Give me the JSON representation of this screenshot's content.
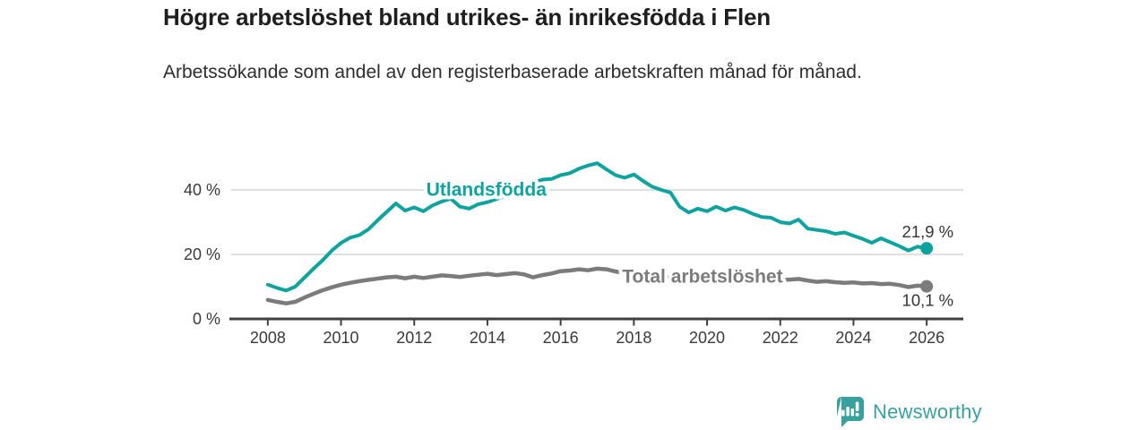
{
  "chart_data": {
    "type": "line",
    "title": "Högre arbetslöshet bland utrikes- än inrikesfödda i Flen",
    "subtitle": "Arbetssökande som andel av den registerbaserade arbetskraften månad för månad.",
    "unit": "%",
    "x": [
      2008.0,
      2008.25,
      2008.5,
      2008.75,
      2009.0,
      2009.25,
      2009.5,
      2009.75,
      2010.0,
      2010.25,
      2010.5,
      2010.75,
      2011.0,
      2011.25,
      2011.5,
      2011.75,
      2012.0,
      2012.25,
      2012.5,
      2012.75,
      2013.0,
      2013.25,
      2013.5,
      2013.75,
      2014.0,
      2014.25,
      2014.5,
      2014.75,
      2015.0,
      2015.25,
      2015.5,
      2015.75,
      2016.0,
      2016.25,
      2016.5,
      2016.75,
      2017.0,
      2017.25,
      2017.5,
      2017.75,
      2018.0,
      2018.25,
      2018.5,
      2018.75,
      2019.0,
      2019.25,
      2019.5,
      2019.75,
      2020.0,
      2020.25,
      2020.5,
      2020.75,
      2021.0,
      2021.25,
      2021.5,
      2021.75,
      2022.0,
      2022.25,
      2022.5,
      2022.75,
      2023.0,
      2023.25,
      2023.5,
      2023.75,
      2024.0,
      2024.25,
      2024.5,
      2024.75,
      2025.0,
      2025.25,
      2025.5,
      2025.75,
      2026.0
    ],
    "series": [
      {
        "name": "Utlandsfödda",
        "color": "#0fa3a0",
        "values": [
          10.6,
          9.6,
          8.8,
          10.0,
          12.8,
          15.6,
          18.2,
          21.2,
          23.6,
          25.2,
          26.0,
          27.8,
          30.6,
          33.2,
          35.8,
          33.6,
          34.6,
          33.4,
          35.2,
          36.4,
          37.3,
          34.8,
          34.2,
          35.6,
          36.2,
          37.2,
          38.2,
          39.2,
          40.6,
          42.2,
          43.2,
          43.4,
          44.6,
          45.2,
          46.6,
          47.6,
          48.3,
          46.4,
          44.6,
          43.8,
          44.8,
          42.8,
          41.0,
          40.0,
          39.2,
          34.8,
          33.0,
          34.2,
          33.4,
          34.8,
          33.6,
          34.6,
          33.8,
          32.6,
          31.6,
          31.4,
          30.0,
          29.6,
          30.8,
          28.0,
          27.6,
          27.2,
          26.4,
          26.8,
          25.8,
          24.8,
          23.6,
          25.0,
          23.8,
          22.6,
          21.2,
          22.4,
          21.9
        ],
        "end_label": "21,9 %",
        "end_label_position": "above",
        "label_anchor": {
          "year": 2012.33,
          "value": 40.3
        }
      },
      {
        "name": "Total arbetslöshet",
        "color": "#7b7b7b",
        "values": [
          5.9,
          5.3,
          4.8,
          5.3,
          6.6,
          7.8,
          8.9,
          9.8,
          10.6,
          11.2,
          11.7,
          12.1,
          12.5,
          12.9,
          13.1,
          12.6,
          13.1,
          12.7,
          13.1,
          13.5,
          13.3,
          13.0,
          13.4,
          13.7,
          14.0,
          13.6,
          13.9,
          14.2,
          13.8,
          12.9,
          13.6,
          14.1,
          14.8,
          15.0,
          15.4,
          15.1,
          15.6,
          15.4,
          14.7,
          14.3,
          14.1,
          13.7,
          13.3,
          13.0,
          12.8,
          12.5,
          12.3,
          12.5,
          12.7,
          13.0,
          12.8,
          12.6,
          12.4,
          12.2,
          12.1,
          12.3,
          12.1,
          12.2,
          12.4,
          11.9,
          11.5,
          11.7,
          11.4,
          11.2,
          11.3,
          11.0,
          11.1,
          10.8,
          10.9,
          10.5,
          9.9,
          10.3,
          10.1
        ],
        "end_label": "10,1 %",
        "end_label_position": "below",
        "label_anchor": {
          "year": 2017.68,
          "value": 13.3
        }
      }
    ],
    "xticks": [
      2008,
      2010,
      2012,
      2014,
      2016,
      2018,
      2020,
      2022,
      2024,
      2026
    ],
    "yticks": [
      {
        "value": 0,
        "label": "0 %"
      },
      {
        "value": 20,
        "label": "20 %"
      },
      {
        "value": 40,
        "label": "40 %"
      }
    ],
    "xlim": [
      2007,
      2027
    ],
    "ylim": [
      0,
      51.4
    ],
    "grid": "horizontal",
    "legend": "inline-labels"
  },
  "footer": {
    "brand": "Newsworthy",
    "brand_color": "#38a1a0",
    "logo_icon": "bar-chart-speech-bubble-icon"
  },
  "colors": {
    "axis_text": "#3a3a3a",
    "grid": "#d9d9d9",
    "axis_line": "#404040",
    "title": "#1e1e1e",
    "subtitle": "#2e2e2e",
    "background": "#ffffff"
  }
}
